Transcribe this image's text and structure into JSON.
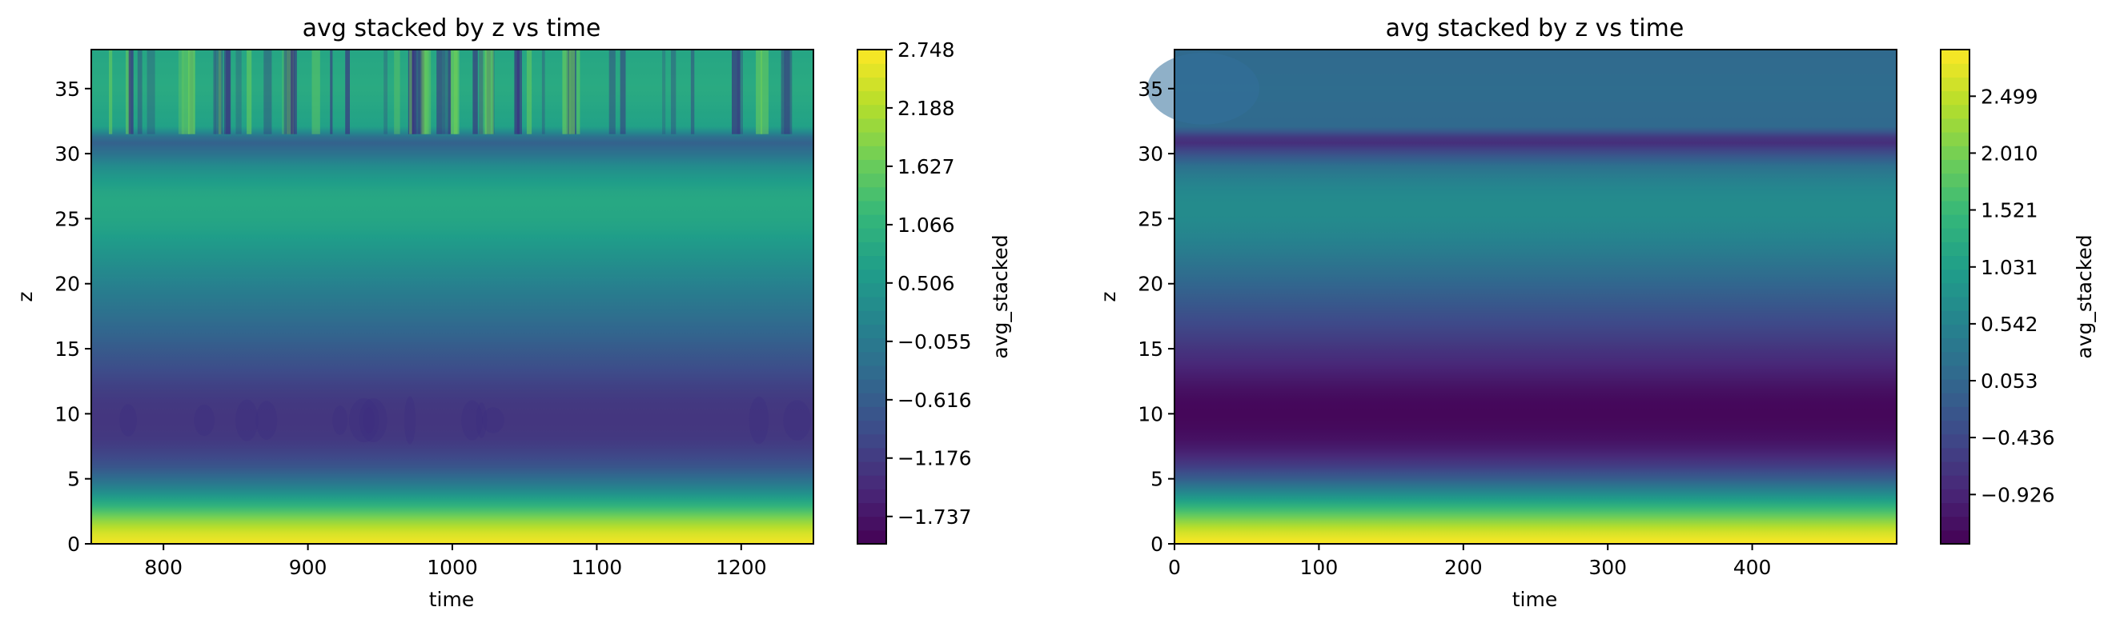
{
  "colors": {
    "viridis": [
      "#440154",
      "#482878",
      "#3e4a89",
      "#31688e",
      "#26828e",
      "#1f9e89",
      "#35b779",
      "#6ece58",
      "#b5de2b",
      "#fde725"
    ]
  },
  "chart_data": [
    {
      "type": "heatmap",
      "title": "avg stacked by z vs time",
      "xlabel": "time",
      "ylabel": "z",
      "xlim": [
        750,
        1250
      ],
      "ylim": [
        0,
        38
      ],
      "xticks": [
        "800",
        "900",
        "1000",
        "1100",
        "1200"
      ],
      "yticks": [
        "0",
        "5",
        "10",
        "15",
        "20",
        "25",
        "30",
        "35"
      ],
      "colorbar": {
        "label": "avg_stacked",
        "min": -2.0,
        "max": 2.748,
        "ticks": [
          "2.748",
          "2.188",
          "1.627",
          "1.066",
          "0.506",
          "−0.055",
          "−0.616",
          "−1.176",
          "−1.737"
        ]
      },
      "z_profile": [
        [
          0,
          2.7
        ],
        [
          1,
          2.4
        ],
        [
          2,
          1.8
        ],
        [
          3,
          1.0
        ],
        [
          4,
          0.3
        ],
        [
          5,
          -0.3
        ],
        [
          6,
          -0.8
        ],
        [
          7,
          -1.05
        ],
        [
          8,
          -1.2
        ],
        [
          9,
          -1.25
        ],
        [
          10,
          -1.25
        ],
        [
          11,
          -1.2
        ],
        [
          12,
          -1.1
        ],
        [
          13,
          -0.95
        ],
        [
          14,
          -0.8
        ],
        [
          15,
          -0.65
        ],
        [
          16,
          -0.5
        ],
        [
          17,
          -0.35
        ],
        [
          18,
          -0.2
        ],
        [
          19,
          -0.05
        ],
        [
          20,
          0.1
        ],
        [
          21,
          0.25
        ],
        [
          22,
          0.4
        ],
        [
          23,
          0.55
        ],
        [
          24,
          0.7
        ],
        [
          25,
          0.8
        ],
        [
          26,
          0.85
        ],
        [
          27,
          0.8
        ],
        [
          28,
          0.6
        ],
        [
          29,
          0.3
        ],
        [
          30,
          -0.2
        ],
        [
          31,
          -0.6
        ],
        [
          32,
          0.7
        ],
        [
          35,
          0.9
        ],
        [
          38,
          0.8
        ]
      ],
      "note_variability": "vertical streaks in upper band z>31"
    },
    {
      "type": "heatmap",
      "title": "avg stacked by z vs time",
      "xlabel": "time",
      "ylabel": "z",
      "xlim": [
        0,
        500
      ],
      "ylim": [
        0,
        38
      ],
      "xticks": [
        "0",
        "100",
        "200",
        "300",
        "400"
      ],
      "yticks": [
        "0",
        "5",
        "10",
        "15",
        "20",
        "25",
        "30",
        "35"
      ],
      "colorbar": {
        "label": "avg_stacked",
        "min": -1.35,
        "max": 2.9,
        "ticks": [
          "2.499",
          "2.010",
          "1.521",
          "1.031",
          "0.542",
          "0.053",
          "−0.436",
          "−0.926"
        ]
      },
      "z_profile": [
        [
          0,
          2.9
        ],
        [
          1,
          2.6
        ],
        [
          2,
          2.0
        ],
        [
          3,
          1.3
        ],
        [
          4,
          0.6
        ],
        [
          5,
          -0.1
        ],
        [
          6,
          -0.6
        ],
        [
          7,
          -0.95
        ],
        [
          8,
          -1.15
        ],
        [
          9,
          -1.25
        ],
        [
          10,
          -1.28
        ],
        [
          11,
          -1.25
        ],
        [
          12,
          -1.15
        ],
        [
          13,
          -1.0
        ],
        [
          14,
          -0.85
        ],
        [
          15,
          -0.7
        ],
        [
          16,
          -0.55
        ],
        [
          17,
          -0.4
        ],
        [
          18,
          -0.25
        ],
        [
          19,
          -0.1
        ],
        [
          20,
          0.05
        ],
        [
          21,
          0.2
        ],
        [
          22,
          0.35
        ],
        [
          23,
          0.5
        ],
        [
          24,
          0.6
        ],
        [
          25,
          0.68
        ],
        [
          26,
          0.7
        ],
        [
          27,
          0.65
        ],
        [
          28,
          0.5
        ],
        [
          29,
          0.25
        ],
        [
          30,
          -0.3
        ],
        [
          31,
          -0.9
        ],
        [
          32,
          0.1
        ],
        [
          35,
          0.15
        ],
        [
          38,
          0.1
        ]
      ]
    }
  ]
}
